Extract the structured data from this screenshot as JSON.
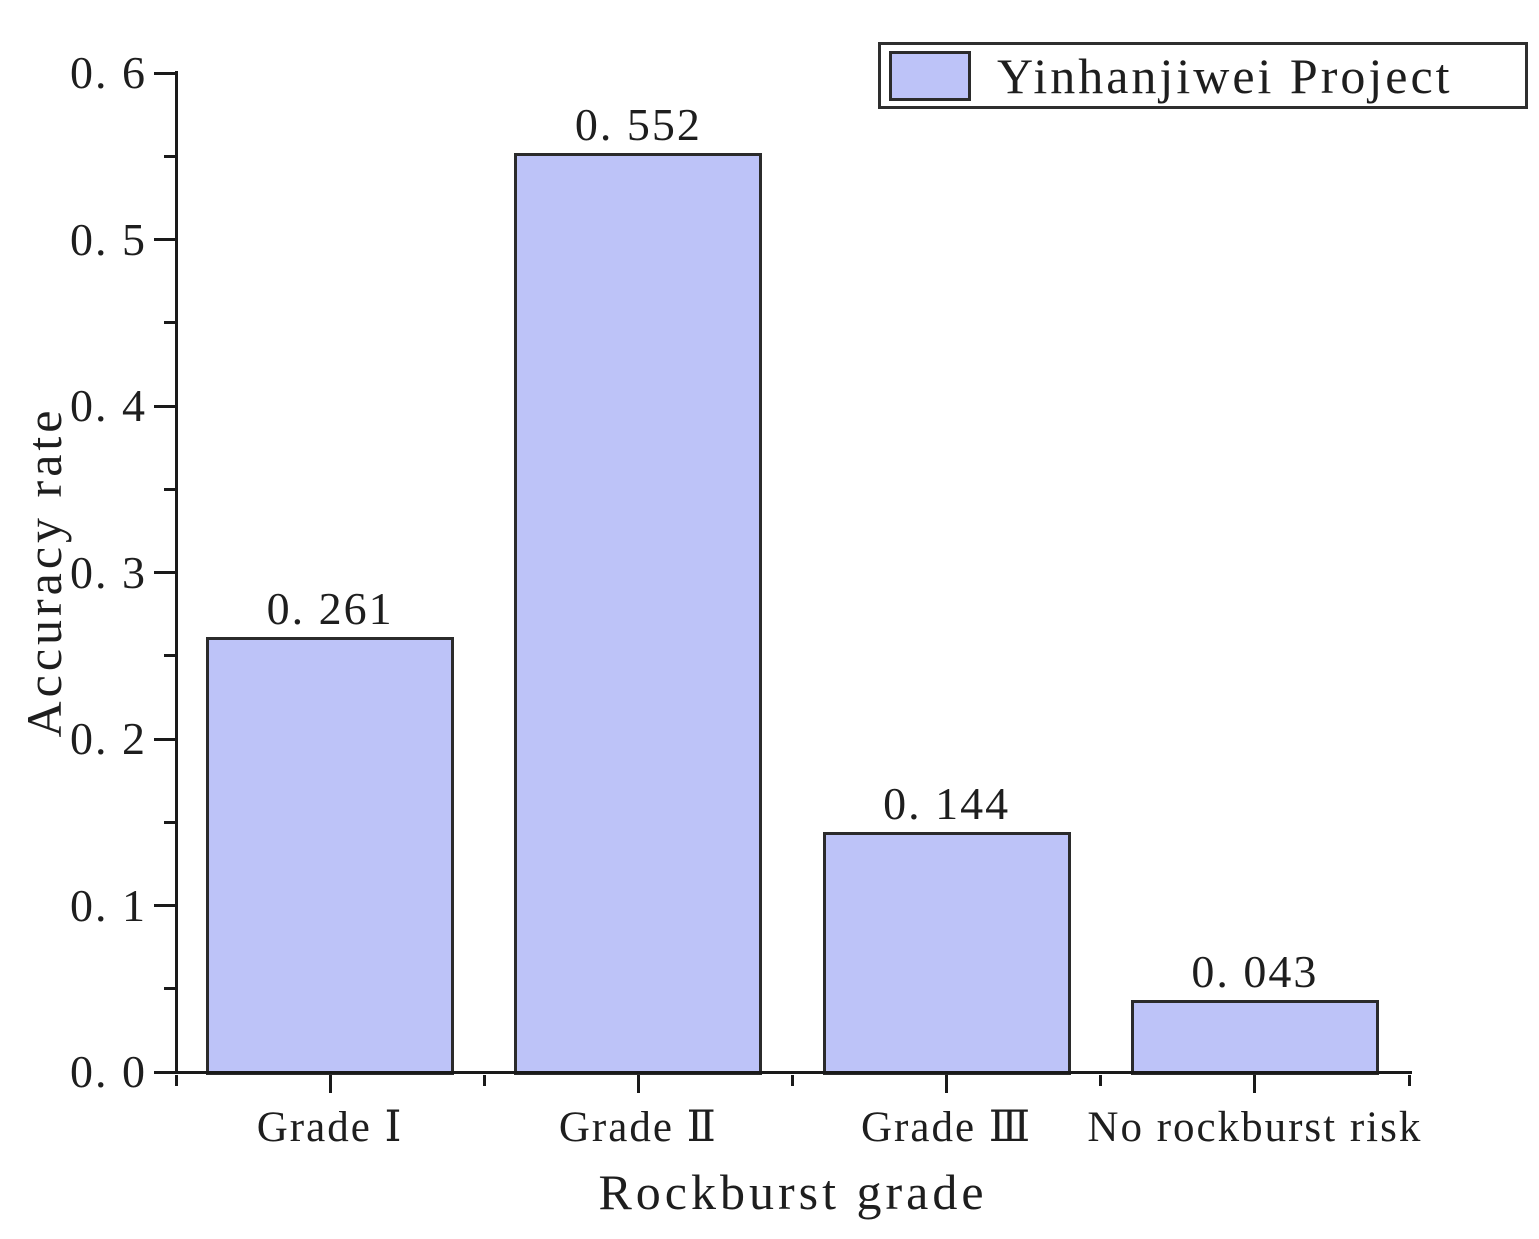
{
  "chart_data": {
    "type": "bar",
    "title": "",
    "xlabel": "Rockburst grade",
    "ylabel": "Accuracy rate",
    "categories": [
      "Grade Ⅰ",
      "Grade Ⅱ",
      "Grade Ⅲ",
      "No rockburst risk"
    ],
    "series": [
      {
        "name": "Yinhanjiwei Project",
        "values": [
          0.261,
          0.552,
          0.144,
          0.043
        ]
      }
    ],
    "value_labels": [
      "0. 261",
      "0. 552",
      "0. 144",
      "0. 043"
    ],
    "ylim": [
      0.0,
      0.6
    ],
    "y_major_step": 0.1,
    "y_minor_step": 0.05,
    "ytick_labels": [
      "0. 0",
      "0. 1",
      "0. 2",
      "0. 3",
      "0. 4",
      "0. 5",
      "0. 6"
    ],
    "grid": false,
    "legend_position": "top-right",
    "colors": {
      "bar_fill": "#BDC3F8",
      "bar_border": "#2b2b2b",
      "axis": "#1a1a1a",
      "text": "#1e1e1e",
      "background": "#ffffff"
    }
  }
}
